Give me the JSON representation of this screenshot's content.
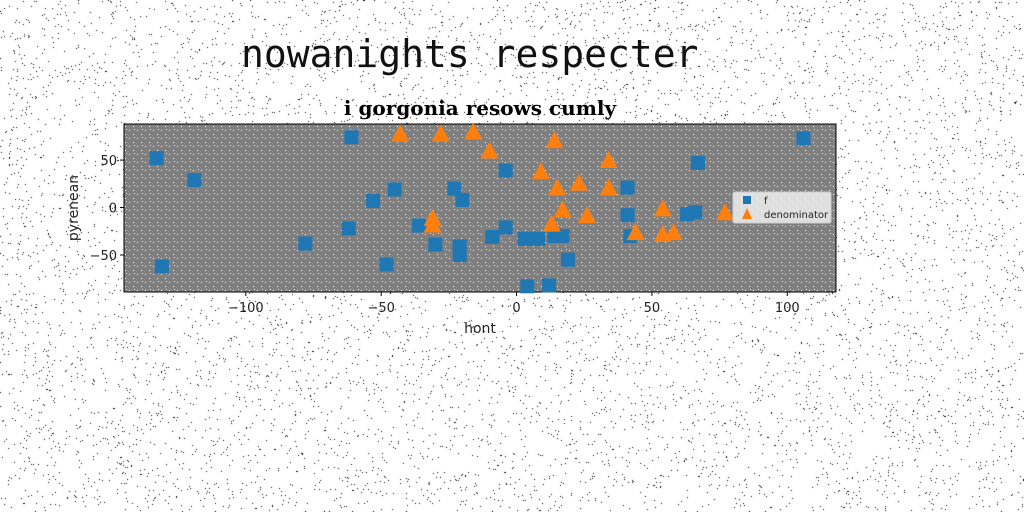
{
  "figure_title": "nowanights respecter",
  "chart_data": {
    "type": "scatter",
    "title": "i gorgonia resows cumly",
    "xlabel": "hont",
    "ylabel": "pyrenean",
    "xlim": [
      -145,
      118
    ],
    "ylim": [
      -89,
      88
    ],
    "xticks": [
      -100,
      -50,
      0,
      50,
      100
    ],
    "xtick_labels": [
      "−100",
      "−50",
      "0",
      "50",
      "100"
    ],
    "yticks": [
      -50,
      0,
      50
    ],
    "ytick_labels": [
      "−50",
      "0",
      "50"
    ],
    "grid": false,
    "plot_background": "#808080",
    "legend_position": "center-right",
    "series": [
      {
        "name": "f",
        "marker": "square",
        "color": "#1f77b4",
        "points": [
          [
            -133,
            52
          ],
          [
            -119,
            29
          ],
          [
            -131,
            -62
          ],
          [
            -61,
            74
          ],
          [
            -62,
            -22
          ],
          [
            -78,
            -38
          ],
          [
            -53,
            7
          ],
          [
            -45,
            19
          ],
          [
            -48,
            -60
          ],
          [
            -36,
            -19
          ],
          [
            -30,
            -39
          ],
          [
            -23,
            20
          ],
          [
            -20,
            8
          ],
          [
            -21,
            -41
          ],
          [
            -21,
            -50
          ],
          [
            -9,
            -31
          ],
          [
            -4,
            39
          ],
          [
            -4,
            -21
          ],
          [
            3,
            -33
          ],
          [
            8,
            -33
          ],
          [
            14,
            -30
          ],
          [
            17,
            -30
          ],
          [
            19,
            -55
          ],
          [
            4,
            -83
          ],
          [
            12,
            -82
          ],
          [
            41,
            21
          ],
          [
            41,
            -8
          ],
          [
            42,
            -30
          ],
          [
            63,
            -7
          ],
          [
            66,
            -5
          ],
          [
            67,
            47
          ],
          [
            106,
            73
          ]
        ]
      },
      {
        "name": "denominator",
        "marker": "triangle",
        "color": "#ff7f0e",
        "points": [
          [
            -43,
            77
          ],
          [
            -28,
            77
          ],
          [
            -16,
            79
          ],
          [
            -10,
            59
          ],
          [
            14,
            70
          ],
          [
            34,
            49
          ],
          [
            9,
            37
          ],
          [
            15,
            20
          ],
          [
            23,
            25
          ],
          [
            34,
            20
          ],
          [
            17,
            -3
          ],
          [
            26,
            -9
          ],
          [
            13,
            -18
          ],
          [
            -31,
            -12
          ],
          [
            -31,
            -19
          ],
          [
            44,
            -27
          ],
          [
            54,
            -2
          ],
          [
            54,
            -29
          ],
          [
            58,
            -27
          ],
          [
            77,
            -6
          ]
        ]
      }
    ]
  }
}
